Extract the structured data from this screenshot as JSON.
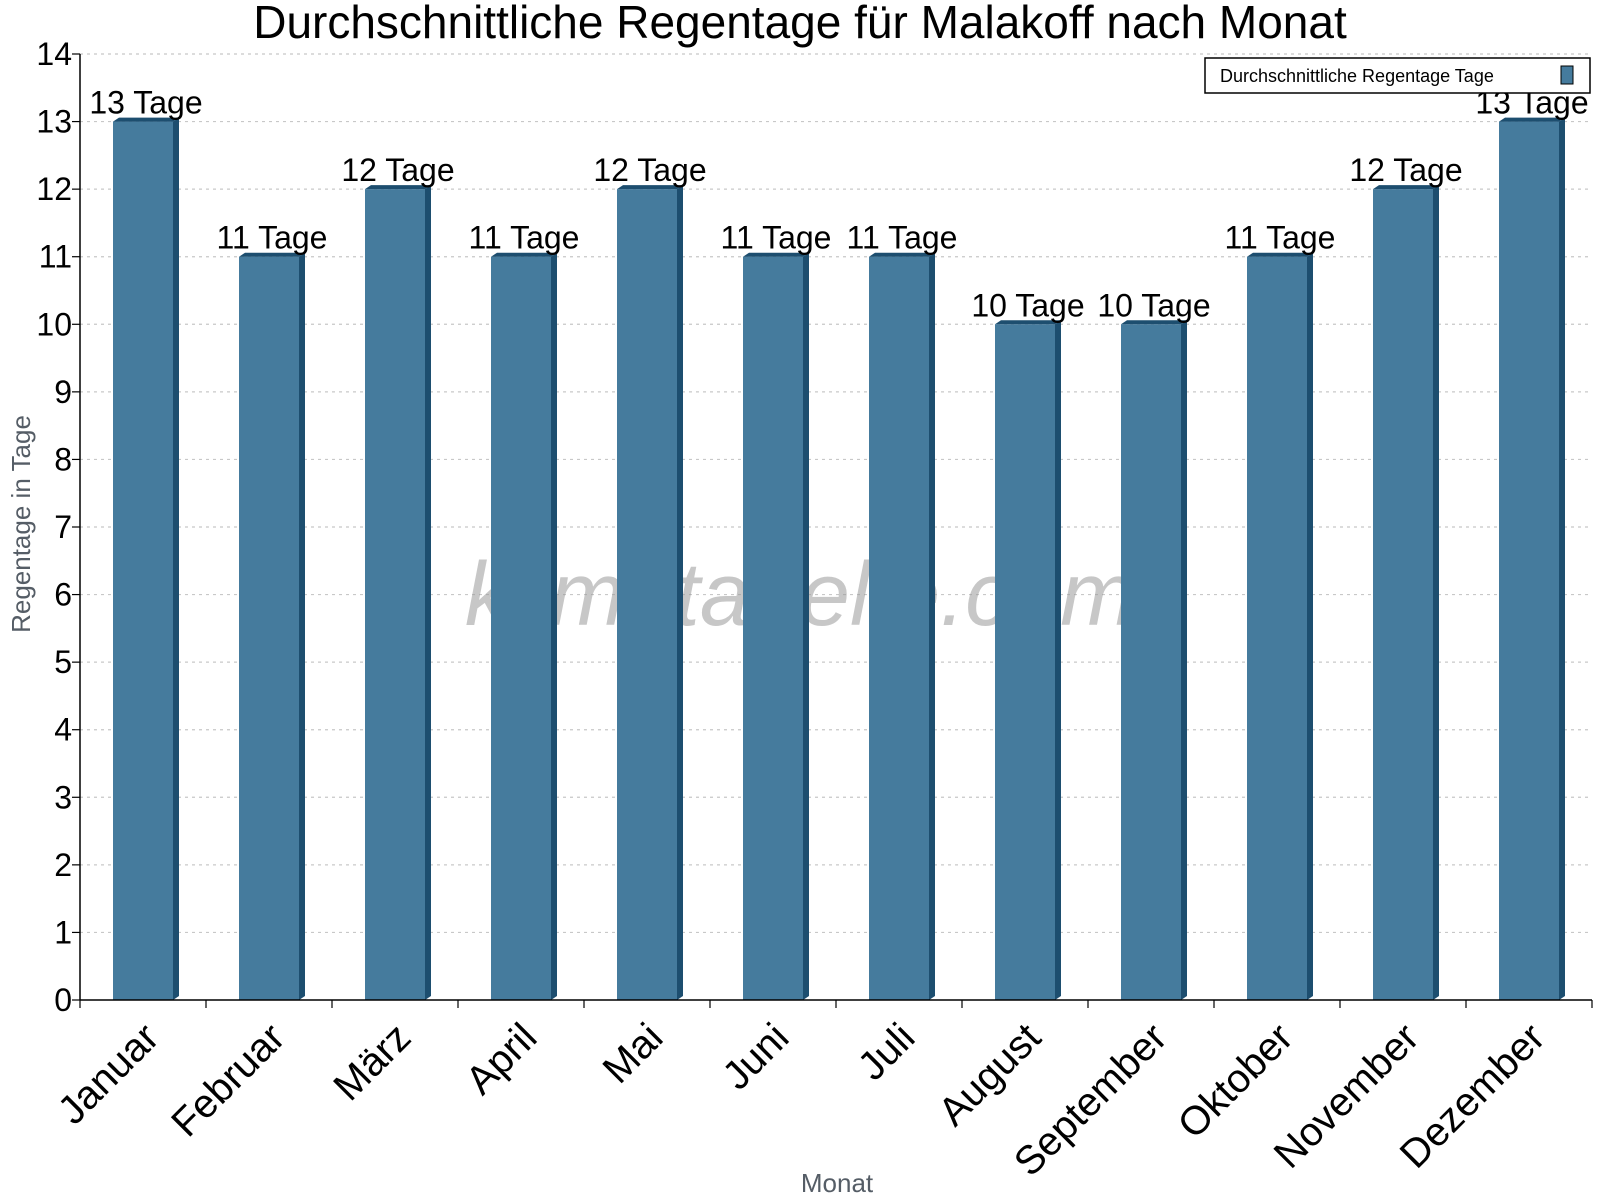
{
  "chart_data": {
    "type": "bar",
    "title": "Durchschnittliche Regentage für Malakoff nach Monat",
    "xlabel": "Monat",
    "ylabel": "Regentage in Tage",
    "ylim": [
      0,
      14
    ],
    "yticks": [
      "0",
      "1",
      "2",
      "3",
      "4",
      "5",
      "6",
      "7",
      "8",
      "9",
      "10",
      "11",
      "12",
      "13",
      "14"
    ],
    "grid": true,
    "legend_position": "top-right",
    "categories": [
      "Januar",
      "Februar",
      "März",
      "April",
      "Mai",
      "Juni",
      "Juli",
      "August",
      "September",
      "Oktober",
      "November",
      "Dezember"
    ],
    "series": [
      {
        "name": "Durchschnittliche Regentage Tage",
        "values": [
          13,
          11,
          12,
          11,
          12,
          11,
          11,
          10,
          10,
          11,
          12,
          13
        ],
        "labels": [
          "13 Tage",
          "11 Tage",
          "12 Tage",
          "11 Tage",
          "12 Tage",
          "11 Tage",
          "11 Tage",
          "10 Tage",
          "10 Tage",
          "11 Tage",
          "12 Tage",
          "13 Tage"
        ]
      }
    ],
    "colors": {
      "bar": "#457b9d",
      "bar_side": "#1d4e6f",
      "bar_top": "#1d4e6f",
      "grid": "#c8c8c8"
    }
  },
  "watermark": "klimatabelle.com"
}
